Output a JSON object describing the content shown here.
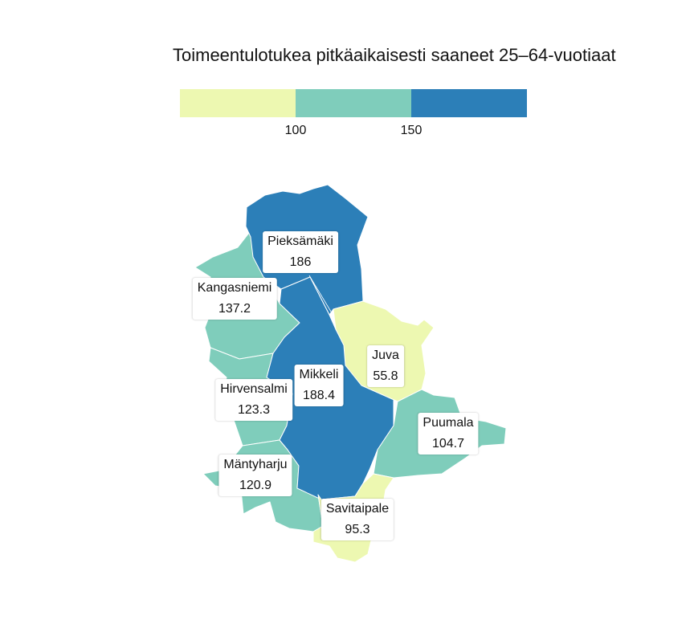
{
  "title": "Toimeentulotukea pitkäaikaisesti saaneet 25–64-vuotiaat",
  "legend": {
    "bins": [
      {
        "color": "#edf8b1",
        "to": 100
      },
      {
        "color": "#7fcdbb",
        "from": 100,
        "to": 150
      },
      {
        "color": "#2c7fb8",
        "from": 150
      }
    ],
    "ticks": [
      "100",
      "150"
    ]
  },
  "regions": [
    {
      "name": "Pieksämäki",
      "value": "186",
      "color": "#2c7fb8"
    },
    {
      "name": "Kangasniemi",
      "value": "137.2",
      "color": "#7fcdbb"
    },
    {
      "name": "Mikkeli",
      "value": "188.4",
      "color": "#2c7fb8"
    },
    {
      "name": "Juva",
      "value": "55.8",
      "color": "#edf8b1"
    },
    {
      "name": "Hirvensalmi",
      "value": "123.3",
      "color": "#7fcdbb"
    },
    {
      "name": "Puumala",
      "value": "104.7",
      "color": "#7fcdbb"
    },
    {
      "name": "Mäntyharju",
      "value": "120.9",
      "color": "#7fcdbb"
    },
    {
      "name": "Savitaipale",
      "value": "95.3",
      "color": "#edf8b1"
    }
  ]
}
